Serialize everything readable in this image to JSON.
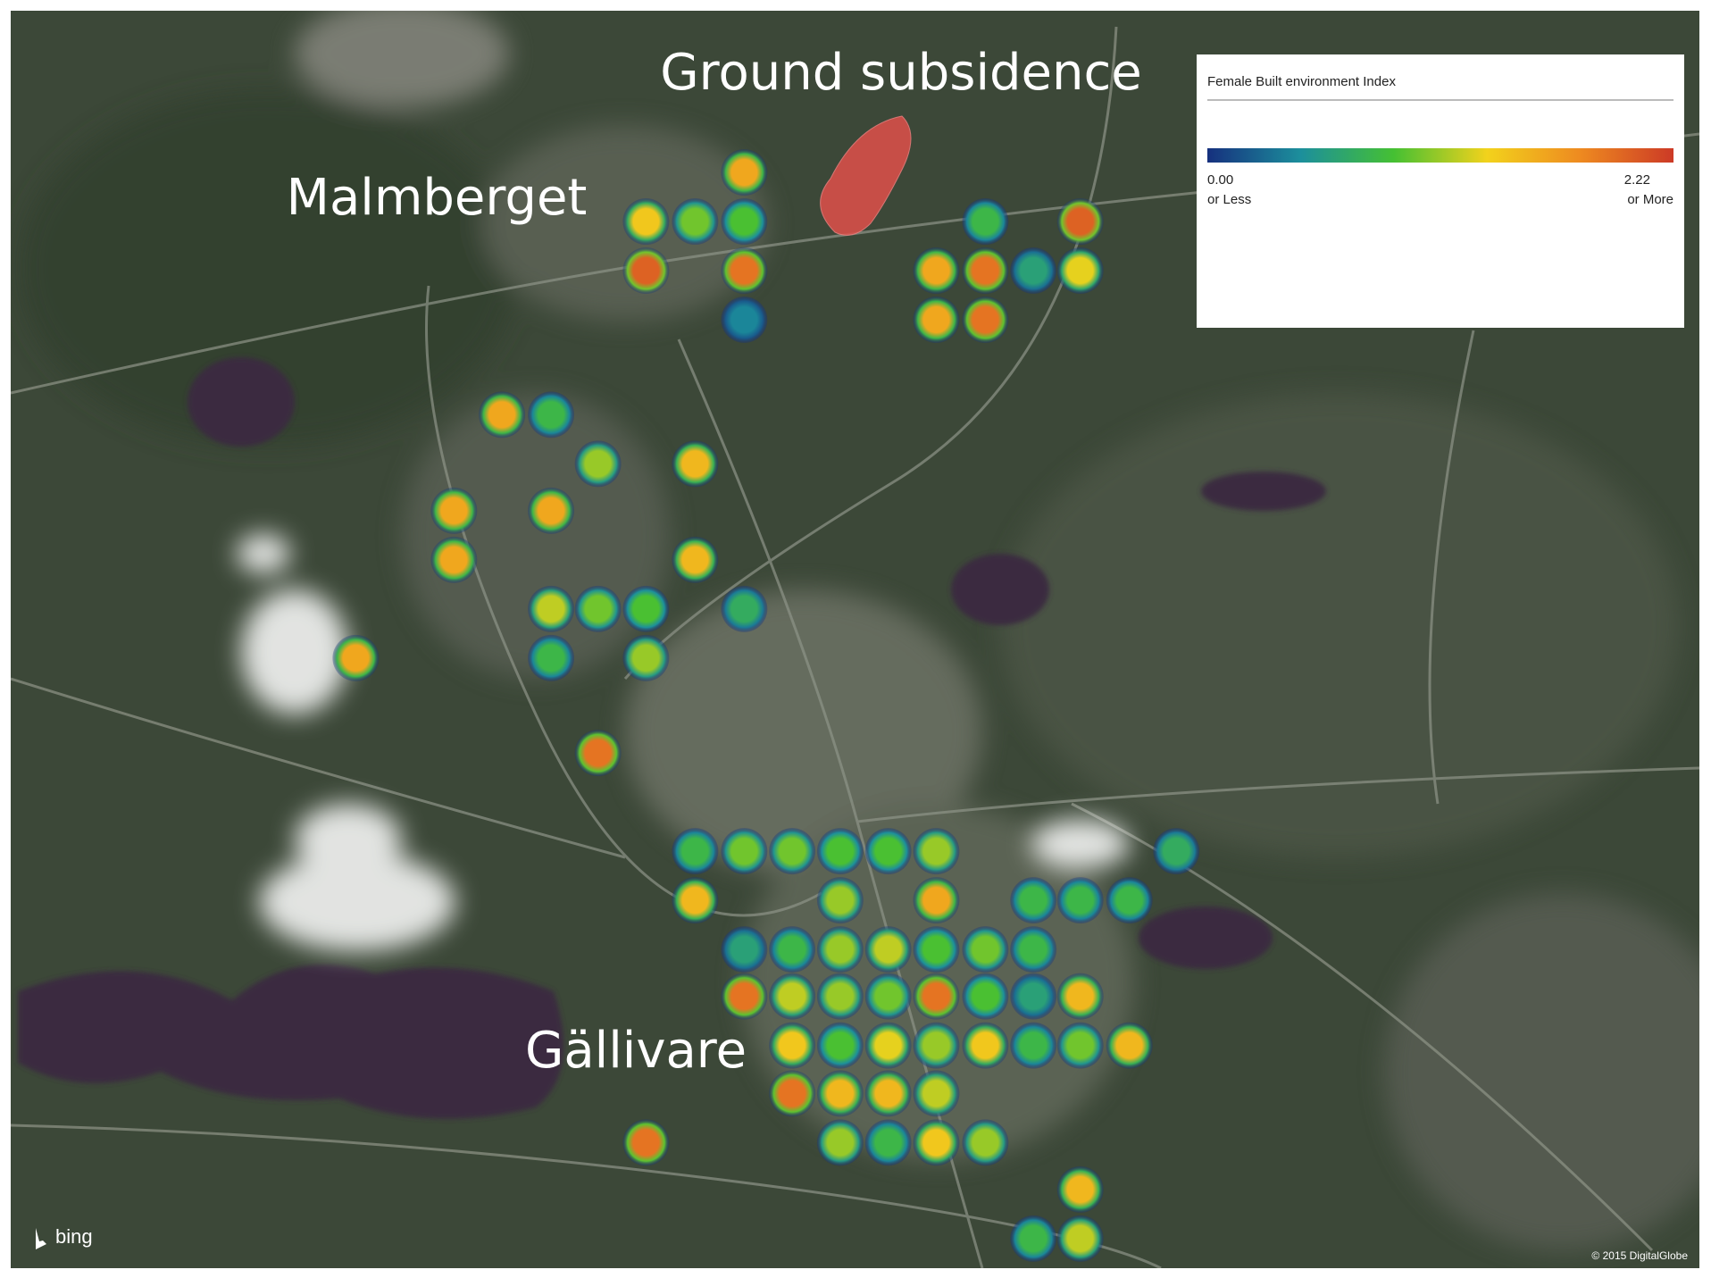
{
  "map": {
    "labels": {
      "subsidence": "Ground subsidence",
      "north_town": "Malmberget",
      "south_town": "Gällivare"
    },
    "legend": {
      "title": "Female Built environment Index",
      "scale": [
        {
          "value": 0,
          "label": "0.00",
          "note": "or Less"
        },
        {
          "value": 2.22,
          "label": "2.22",
          "note": "or More"
        }
      ],
      "colors": [
        "#16307e",
        "#1c8f9c",
        "#45c033",
        "#f2d21c",
        "#ee8a20",
        "#cc3a26"
      ]
    },
    "heat": {
      "cells": [
        1.6,
        1.4,
        1.0,
        0.9,
        2.0,
        1.9,
        0.4,
        0.8,
        2.0,
        1.6,
        1.9,
        0.6,
        1.3,
        1.6,
        1.9,
        1.6,
        0.8,
        1.1,
        1.5,
        1.6,
        1.6,
        1.6,
        1.5,
        1.2,
        1.0,
        0.9,
        0.7,
        0.8,
        1.1,
        1.6,
        1.9,
        0.8,
        1.0,
        1.0,
        0.9,
        0.9,
        1.1,
        0.7,
        1.5,
        1.1,
        1.6,
        0.8,
        0.8,
        0.8,
        0.6,
        0.8,
        1.1,
        1.2,
        0.9,
        1.0,
        0.8,
        1.9,
        1.2,
        1.1,
        1.0,
        1.9,
        0.9,
        0.6,
        1.5,
        1.4,
        0.9,
        1.3,
        1.1,
        1.4,
        0.8,
        1.0,
        1.5,
        1.9,
        1.5,
        1.5,
        1.2,
        1.1,
        0.8,
        1.4,
        1.1,
        1.9,
        1.5,
        0.8,
        1.2
      ]
    },
    "attribution": {
      "brand": "bing",
      "credit": "© 2015 DigitalGlobe"
    }
  }
}
